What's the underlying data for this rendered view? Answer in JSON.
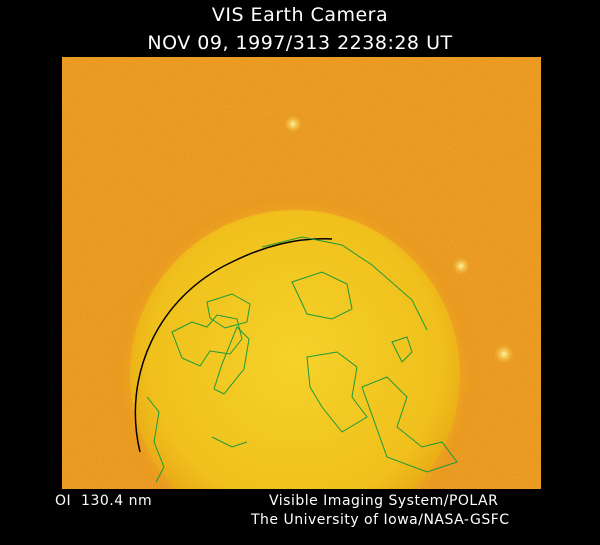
{
  "header": {
    "title": "VIS Earth Camera",
    "timestamp": "NOV 09, 1997/313 2238:28 UT"
  },
  "image": {
    "description_colors": {
      "background": "#e8900f",
      "earth": "#f2c41a",
      "limb": "#000000",
      "coastlines": "#1a9a3a"
    }
  },
  "footer": {
    "band": "OI  130.4 nm",
    "credit_line1": "Visible Imaging System/POLAR",
    "credit_line2": "The University of Iowa/NASA-GSFC"
  }
}
